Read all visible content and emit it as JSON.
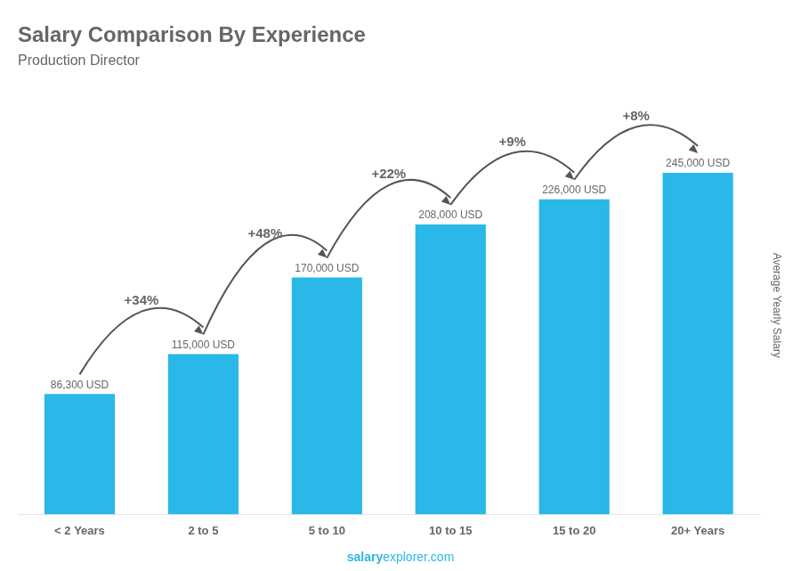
{
  "chart_data": {
    "type": "bar",
    "title": "Salary Comparison By Experience",
    "subtitle": "Production Director",
    "ylabel": "Average Yearly Salary",
    "categories": [
      "< 2 Years",
      "2 to 5",
      "5 to 10",
      "10 to 15",
      "15 to 20",
      "20+ Years"
    ],
    "values": [
      86300,
      115000,
      170000,
      208000,
      226000,
      245000
    ],
    "value_labels": [
      "86,300 USD",
      "115,000 USD",
      "170,000 USD",
      "208,000 USD",
      "226,000 USD",
      "245,000 USD"
    ],
    "data_labels": true,
    "color": "#29B8E8",
    "ylim": [
      0,
      300000
    ],
    "tick_labels": "x",
    "grid": false,
    "annotations": [
      {
        "text": "+34%",
        "from": "< 2 Years",
        "to": "2 to 5"
      },
      {
        "text": "+48%",
        "from": "2 to 5",
        "to": "5 to 10"
      },
      {
        "text": "+22%",
        "from": "5 to 10",
        "to": "10 to 15"
      },
      {
        "text": "+9%",
        "from": "10 to 15",
        "to": "15 to 20"
      },
      {
        "text": "+8%",
        "from": "15 to 20",
        "to": "20+ Years"
      }
    ],
    "credit": [
      "salary",
      "explorer.com"
    ]
  }
}
